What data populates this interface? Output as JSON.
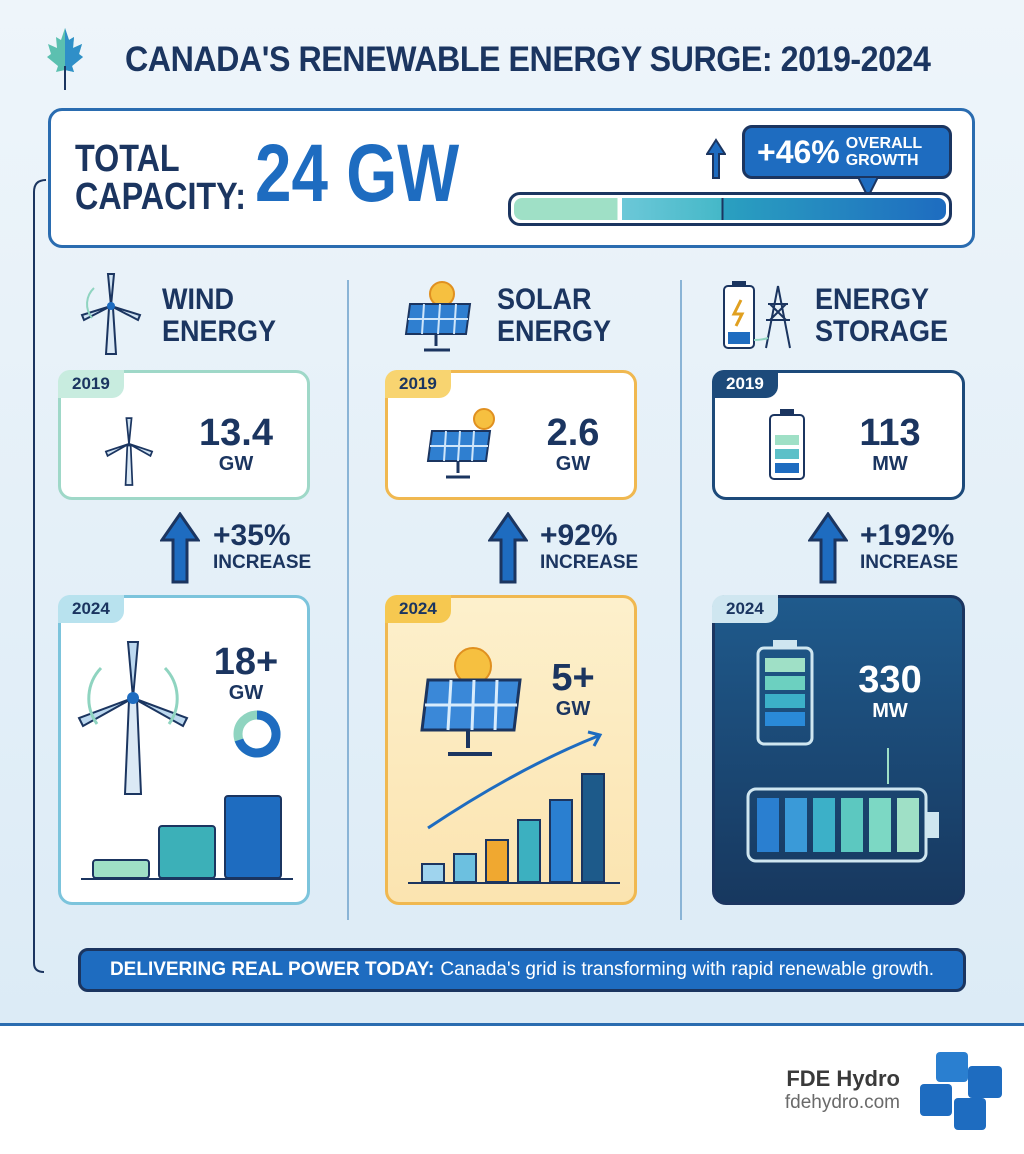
{
  "title": "CANADA'S RENEWABLE ENERGY SURGE: 2019-2024",
  "total": {
    "label_line1": "TOTAL",
    "label_line2": "CAPACITY:",
    "value": "24 GW",
    "growth_pct": "+46%",
    "growth_line1": "OVERALL",
    "growth_line2": "GROWTH",
    "progress_percent": 100
  },
  "columns": [
    {
      "title_line1": "WIND",
      "title_line2": "ENERGY",
      "y2019": {
        "year": "2019",
        "value": "13.4",
        "unit": "GW"
      },
      "increase": {
        "pct": "+35%",
        "label": "INCREASE"
      },
      "y2024": {
        "year": "2024",
        "value": "18+",
        "unit": "GW"
      }
    },
    {
      "title_line1": "SOLAR",
      "title_line2": "ENERGY",
      "y2019": {
        "year": "2019",
        "value": "2.6",
        "unit": "GW"
      },
      "increase": {
        "pct": "+92%",
        "label": "INCREASE"
      },
      "y2024": {
        "year": "2024",
        "value": "5+",
        "unit": "GW"
      }
    },
    {
      "title_line1": "ENERGY",
      "title_line2": "STORAGE",
      "y2019": {
        "year": "2019",
        "value": "113",
        "unit": "MW"
      },
      "increase": {
        "pct": "+192%",
        "label": "INCREASE"
      },
      "y2024": {
        "year": "2024",
        "value": "330",
        "unit": "MW"
      }
    }
  ],
  "banner": {
    "bold": "DELIVERING REAL POWER TODAY:",
    "text": "Canada's grid is transforming with rapid renewable growth."
  },
  "footer": {
    "brand": "FDE Hydro",
    "url": "fdehydro.com"
  },
  "colors": {
    "navy": "#1b3560",
    "blue": "#1e6cc0",
    "wind": "#8fd4c0",
    "solar": "#f0b040",
    "storage": "#1d4a7a"
  }
}
